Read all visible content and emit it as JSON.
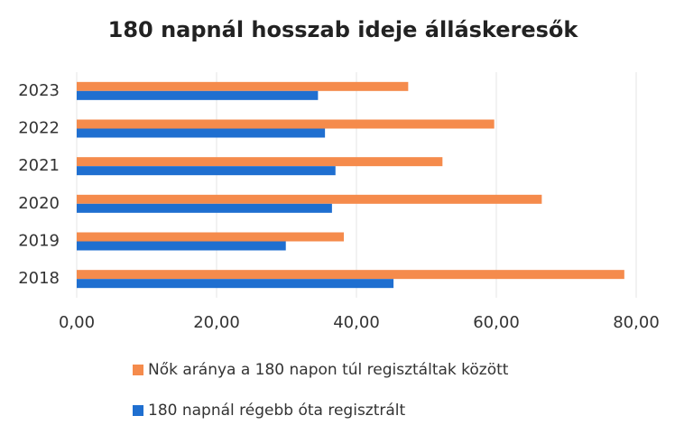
{
  "chart_data": {
    "type": "hbar",
    "title": "180 napnál hosszab ideje álláskeresők",
    "categories": [
      "2023",
      "2022",
      "2021",
      "2020",
      "2019",
      "2018"
    ],
    "series": [
      {
        "name": "Nők aránya a 180 napon túl regisztáltak között",
        "color": "#f58b4c",
        "values": [
          47.4,
          59.7,
          52.3,
          66.5,
          38.2,
          78.3
        ]
      },
      {
        "name": "180 napnál régebb óta regisztrált",
        "color": "#1f6fd0",
        "values": [
          34.5,
          35.5,
          37.0,
          36.5,
          29.9,
          45.3
        ]
      }
    ],
    "xlim": [
      0,
      80
    ],
    "xticks": [
      {
        "value": 0,
        "label": "0,00"
      },
      {
        "value": 20,
        "label": "20,00"
      },
      {
        "value": 40,
        "label": "40,00"
      },
      {
        "value": 60,
        "label": "60,00"
      },
      {
        "value": 80,
        "label": "80,00"
      }
    ],
    "grid": true
  }
}
